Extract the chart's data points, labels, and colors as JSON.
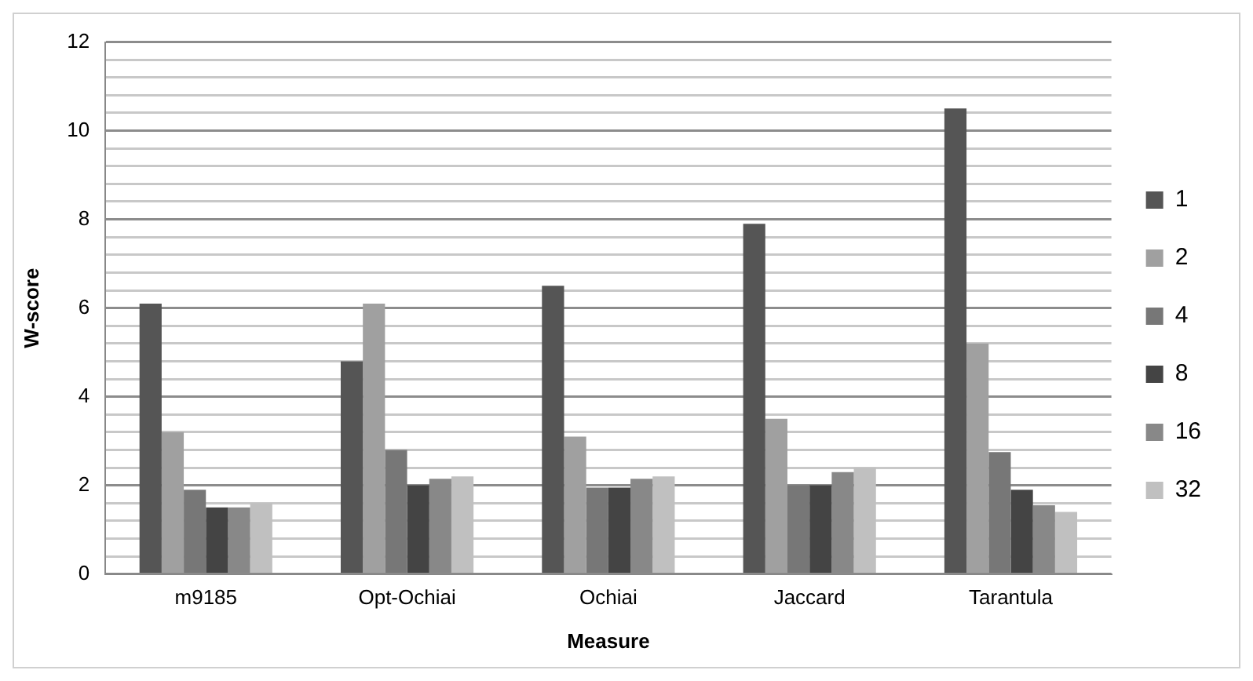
{
  "chart_data": {
    "type": "bar",
    "xlabel": "Measure",
    "ylabel": "W-score",
    "categories": [
      "m9185",
      "Opt-Ochiai",
      "Ochiai",
      "Jaccard",
      "Tarantula"
    ],
    "series": [
      {
        "name": "1",
        "color": "#555555",
        "values": [
          6.1,
          4.8,
          6.5,
          7.9,
          10.5
        ]
      },
      {
        "name": "2",
        "color": "#a0a0a0",
        "values": [
          3.2,
          6.1,
          3.1,
          3.5,
          5.2
        ]
      },
      {
        "name": "4",
        "color": "#777777",
        "values": [
          1.9,
          2.8,
          1.95,
          2.0,
          2.75
        ]
      },
      {
        "name": "8",
        "color": "#444444",
        "values": [
          1.5,
          2.0,
          1.95,
          2.0,
          1.9
        ]
      },
      {
        "name": "16",
        "color": "#888888",
        "values": [
          1.5,
          2.15,
          2.15,
          2.3,
          1.55
        ]
      },
      {
        "name": "32",
        "color": "#c0c0c0",
        "values": [
          1.6,
          2.2,
          2.2,
          2.4,
          1.4
        ]
      }
    ],
    "ylim": [
      0,
      12
    ],
    "yticks": [
      0,
      {
        "value": 0.4,
        "label": null
      },
      {
        "value": 0.8,
        "label": null
      },
      {
        "value": 1.2,
        "label": null
      },
      {
        "value": 1.6,
        "label": null
      },
      2,
      {
        "value": 2.4,
        "label": null
      },
      {
        "value": 2.8,
        "label": null
      },
      {
        "value": 3.2,
        "label": null
      },
      {
        "value": 3.6,
        "label": null
      },
      4,
      {
        "value": 4.4,
        "label": null
      },
      {
        "value": 4.8,
        "label": null
      },
      {
        "value": 5.2,
        "label": null
      },
      {
        "value": 5.6,
        "label": null
      },
      6,
      {
        "value": 6.4,
        "label": null
      },
      {
        "value": 6.8,
        "label": null
      },
      {
        "value": 7.2,
        "label": null
      },
      {
        "value": 7.6,
        "label": null
      },
      8,
      {
        "value": 8.4,
        "label": null
      },
      {
        "value": 8.8,
        "label": null
      },
      {
        "value": 9.2,
        "label": null
      },
      {
        "value": 9.6,
        "label": null
      },
      10,
      {
        "value": 10.4,
        "label": null
      },
      {
        "value": 10.8,
        "label": null
      },
      {
        "value": 11.2,
        "label": null
      },
      {
        "value": 11.6,
        "label": null
      },
      12
    ],
    "grid": "y",
    "legend": "right"
  }
}
